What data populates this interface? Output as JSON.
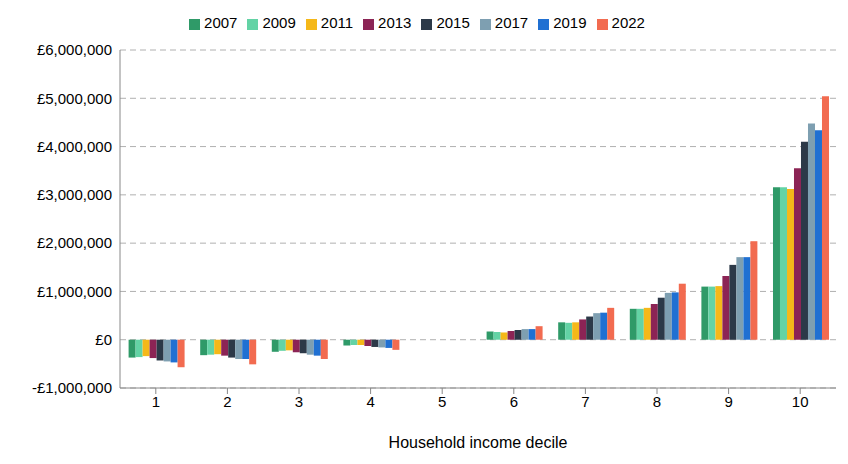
{
  "chart_data": {
    "type": "bar",
    "xlabel": "Household income decile",
    "categories": [
      "1",
      "2",
      "3",
      "4",
      "5",
      "6",
      "7",
      "8",
      "9",
      "10"
    ],
    "series": [
      {
        "name": "2007",
        "color": "#2f9a68",
        "values": [
          -370000,
          -320000,
          -250000,
          -120000,
          0,
          170000,
          360000,
          640000,
          1100000,
          3160000
        ]
      },
      {
        "name": "2009",
        "color": "#63d3a5",
        "values": [
          -360000,
          -310000,
          -230000,
          -110000,
          0,
          160000,
          350000,
          640000,
          1100000,
          3160000
        ]
      },
      {
        "name": "2011",
        "color": "#f5b819",
        "values": [
          -340000,
          -300000,
          -220000,
          -110000,
          0,
          150000,
          360000,
          660000,
          1110000,
          3120000
        ]
      },
      {
        "name": "2013",
        "color": "#8c2455",
        "values": [
          -380000,
          -330000,
          -260000,
          -130000,
          0,
          180000,
          420000,
          740000,
          1320000,
          3550000
        ]
      },
      {
        "name": "2015",
        "color": "#2c3948",
        "values": [
          -430000,
          -370000,
          -280000,
          -150000,
          0,
          200000,
          480000,
          870000,
          1550000,
          4100000
        ]
      },
      {
        "name": "2017",
        "color": "#7e9fb1",
        "values": [
          -450000,
          -400000,
          -310000,
          -160000,
          0,
          220000,
          550000,
          970000,
          1710000,
          4480000
        ]
      },
      {
        "name": "2019",
        "color": "#2070d2",
        "values": [
          -470000,
          -400000,
          -330000,
          -170000,
          0,
          220000,
          560000,
          980000,
          1710000,
          4340000
        ]
      },
      {
        "name": "2022",
        "color": "#f26b50",
        "values": [
          -570000,
          -510000,
          -400000,
          -210000,
          0,
          280000,
          660000,
          1160000,
          2040000,
          5040000
        ]
      }
    ],
    "ylim": [
      -1000000,
      6000000
    ],
    "yticks": [
      {
        "value": -1000000,
        "label": "-£1,000,000"
      },
      {
        "value": 0,
        "label": "£0"
      },
      {
        "value": 1000000,
        "label": "£1,000,000"
      },
      {
        "value": 2000000,
        "label": "£2,000,000"
      },
      {
        "value": 3000000,
        "label": "£3,000,000"
      },
      {
        "value": 4000000,
        "label": "£4,000,000"
      },
      {
        "value": 5000000,
        "label": "£5,000,000"
      },
      {
        "value": 6000000,
        "label": "£6,000,000"
      }
    ],
    "grid": true,
    "legend": "top"
  }
}
